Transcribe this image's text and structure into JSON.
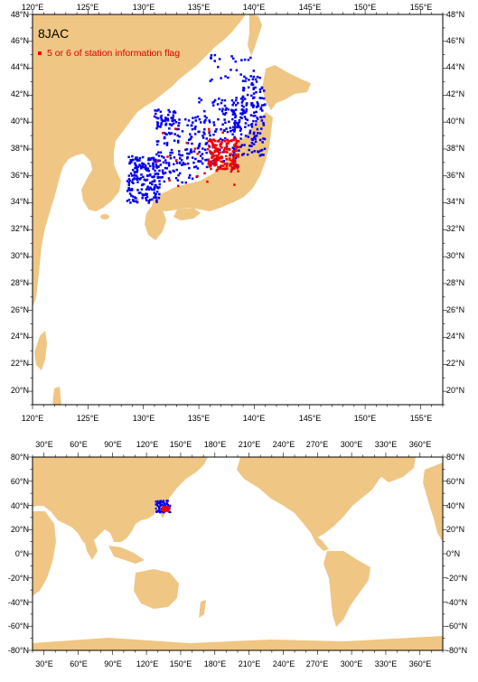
{
  "colors": {
    "land": "#f0c684",
    "ocean": "#ffffff",
    "station": "#0000ee",
    "flagged": "#ee0000",
    "frame": "#000000"
  },
  "top_map": {
    "dataset_label": "8JAC",
    "legend_label": "5 or 6 of station information flag",
    "lon_range": [
      120,
      157
    ],
    "lat_range": [
      19,
      48
    ],
    "lon_tick_labels": [
      "120°E",
      "125°E",
      "130°E",
      "135°E",
      "140°E",
      "145°E",
      "150°E",
      "155°E"
    ],
    "lat_tick_labels": [
      "20°N",
      "22°N",
      "24°N",
      "26°N",
      "28°N",
      "30°N",
      "32°N",
      "34°N",
      "36°N",
      "38°N",
      "40°N",
      "42°N",
      "44°N",
      "46°N",
      "48°N"
    ]
  },
  "bottom_map": {
    "lon_range": [
      20,
      380
    ],
    "lat_range": [
      -80,
      80
    ],
    "lon_tick_labels": [
      "30°E",
      "60°E",
      "90°E",
      "120°E",
      "150°E",
      "180°E",
      "210°E",
      "240°E",
      "270°E",
      "300°E",
      "330°E",
      "360°E"
    ],
    "lat_tick_labels": [
      "80°N",
      "60°N",
      "40°N",
      "20°N",
      "0°N",
      "-20°N",
      "-40°N",
      "-60°N",
      "-80°N"
    ]
  }
}
